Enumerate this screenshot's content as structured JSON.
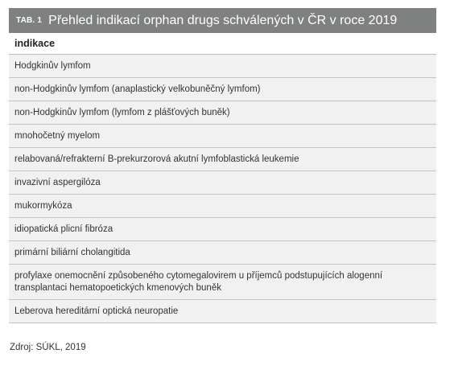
{
  "table": {
    "label": "TAB. 1",
    "title": "Přehled indikací orphan drugs schválených v ČR v roce 2019",
    "column_header": "indikace",
    "rows": [
      "Hodgkinův lymfom",
      "non-Hodgkinův lymfom (anaplastický velkobuněčný lymfom)",
      "non-Hodgkinův lymfom (lymfom z plášťových buněk)",
      "mnohočetný myelom",
      "relabovaná/refrakterní B-prekurzorová akutní lymfoblastická leukemie",
      "invazivní aspergilóza",
      "mukormykóza",
      "idiopatická plicní fibróza",
      "primární biliární cholangitida",
      "profylaxe onemocnění způsobeného cytomegalovirem u příjemců podstupujících alogenní transplantaci hematopoetických kmenových buněk",
      "Leberova hereditární optická neuropatie"
    ]
  },
  "source": "Zdroj: SÚKL, 2019",
  "colors": {
    "header_bg": "#7f8080",
    "row_bg": "#f1f1f1",
    "row_border": "#c4c4c4"
  }
}
